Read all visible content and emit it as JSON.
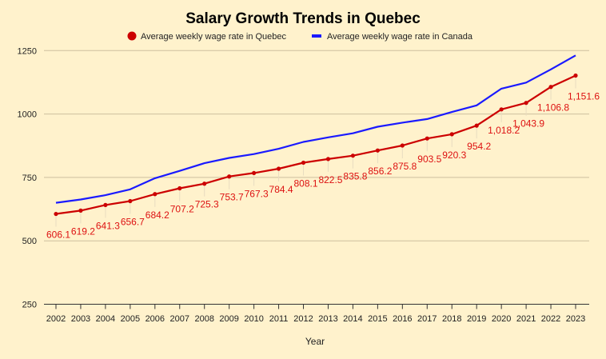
{
  "chart_data": {
    "type": "line",
    "title": "Salary Growth Trends in Quebec",
    "xlabel": "Year",
    "ylabel": "",
    "ylim": [
      250,
      1250
    ],
    "yticks": [
      250,
      500,
      750,
      1000,
      1250
    ],
    "grid": true,
    "legend": "top",
    "categories": [
      "2002",
      "2003",
      "2004",
      "2005",
      "2006",
      "2007",
      "2008",
      "2009",
      "2010",
      "2011",
      "2012",
      "2013",
      "2014",
      "2015",
      "2016",
      "2017",
      "2018",
      "2019",
      "2020",
      "2021",
      "2022",
      "2023"
    ],
    "series": [
      {
        "name": "Average weekly wage rate in Quebec",
        "color": "#cc0000",
        "markers": true,
        "data_labels": true,
        "values": [
          606.1,
          619.2,
          641.3,
          656.7,
          684.2,
          707.2,
          725.3,
          753.7,
          767.3,
          784.4,
          808.1,
          822.5,
          835.8,
          856.2,
          875.8,
          903.5,
          920.3,
          954.2,
          1018.2,
          1043.9,
          1106.8,
          1151.6
        ]
      },
      {
        "name": "Average weekly wage rate in Canada",
        "color": "#1a1aff",
        "markers": false,
        "data_labels": false,
        "values": [
          650,
          663,
          680,
          703,
          747,
          776,
          806,
          827,
          842,
          863,
          890,
          908,
          924,
          950,
          966,
          980,
          1008,
          1034,
          1100,
          1124,
          1176,
          1231
        ]
      }
    ]
  }
}
